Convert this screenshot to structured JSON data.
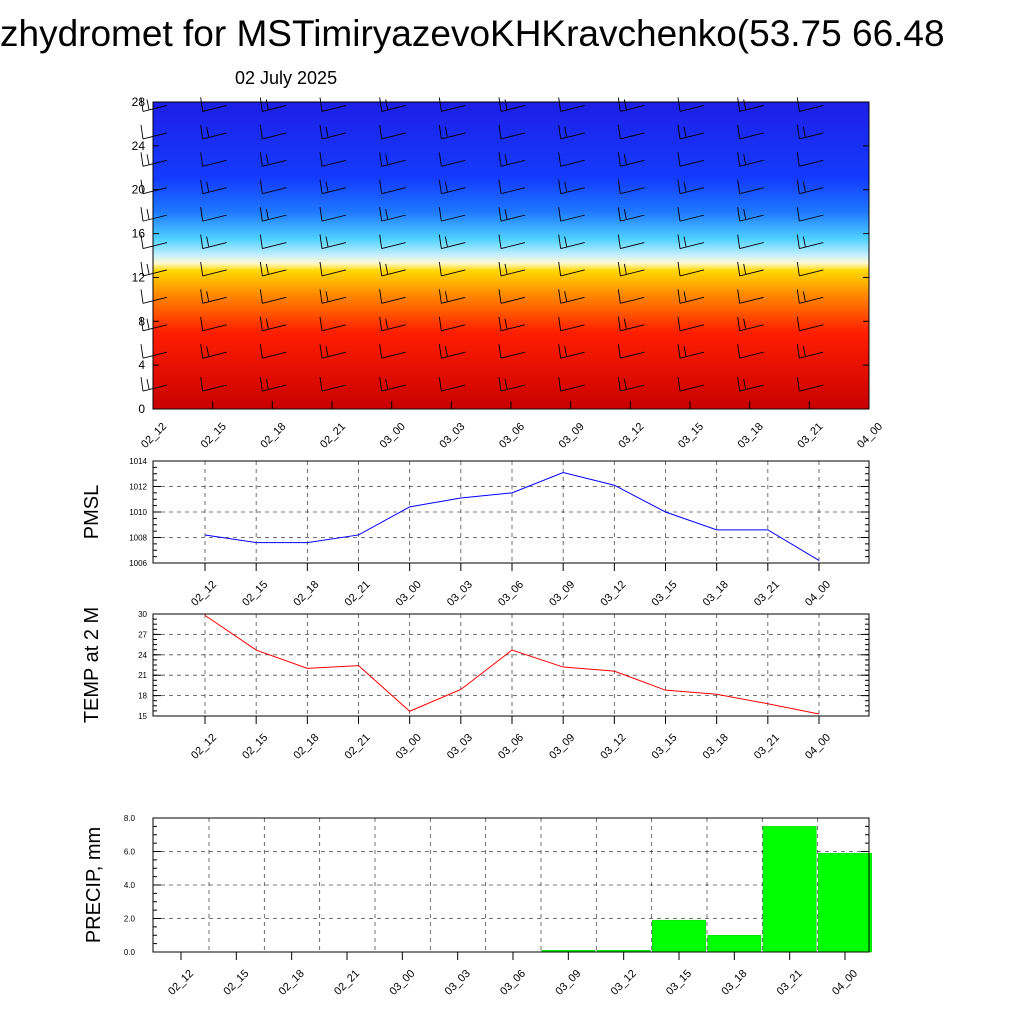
{
  "header": {
    "title": "zhydromet for MSTimiryazevoKHKravchenko(53.75 66.48",
    "date": "02 July 2025"
  },
  "colors": {
    "pmsl_line": "#0000ff",
    "temp_line": "#ff0000",
    "precip_bar": "#00ff00",
    "section_cold": "#1e1ee6",
    "section_warm": "#e60000"
  },
  "chart_data": [
    {
      "id": "section",
      "type": "heatmap",
      "title": "",
      "xlabel": "",
      "ylabel": "",
      "x": [
        "02_12",
        "02_15",
        "02_18",
        "02_21",
        "03_00",
        "03_03",
        "03_06",
        "03_09",
        "03_12",
        "03_15",
        "03_18",
        "03_21",
        "04_00"
      ],
      "ylim": [
        0,
        28
      ],
      "yticks": [
        "0",
        "4",
        "8",
        "12",
        "16",
        "20",
        "24",
        "28"
      ],
      "colormap": [
        {
          "level": 0,
          "color": "#c80000"
        },
        {
          "level": 7,
          "color": "#ff1e00"
        },
        {
          "level": 10.5,
          "color": "#ff8c00"
        },
        {
          "level": 12.6,
          "color": "#ffd700"
        },
        {
          "level": 13.3,
          "color": "#fffacd"
        },
        {
          "level": 14,
          "color": "#c8f0ff"
        },
        {
          "level": 15.5,
          "color": "#50d2ff"
        },
        {
          "level": 18,
          "color": "#1e78ff"
        },
        {
          "level": 21,
          "color": "#143cff"
        },
        {
          "level": 28,
          "color": "#1e1ee6"
        }
      ],
      "wind_barbs": "present",
      "grid": false
    },
    {
      "id": "pmsl",
      "type": "line",
      "ylabel": "PMSL",
      "x": [
        "02_12",
        "02_15",
        "02_18",
        "02_21",
        "03_00",
        "03_03",
        "03_06",
        "03_09",
        "03_12",
        "03_15",
        "03_18",
        "03_21",
        "04_00"
      ],
      "series": [
        {
          "values": [
            1008.2,
            1007.6,
            1007.6,
            1008.2,
            1010.4,
            1011.1,
            1011.5,
            1013.1,
            1012.1,
            1010.0,
            1008.6,
            1008.6,
            1006.2
          ]
        }
      ],
      "ylim": [
        1006,
        1014
      ],
      "yticks": [
        "1006",
        "1008",
        "1010",
        "1012",
        "1014"
      ],
      "grid": true
    },
    {
      "id": "temp",
      "type": "line",
      "ylabel": "TEMP at 2 M",
      "x": [
        "02_12",
        "02_15",
        "02_18",
        "02_21",
        "03_00",
        "03_03",
        "03_06",
        "03_09",
        "03_12",
        "03_15",
        "03_18",
        "03_21",
        "04_00"
      ],
      "series": [
        {
          "values": [
            29.8,
            24.7,
            22.0,
            22.4,
            15.7,
            18.9,
            24.7,
            22.2,
            21.6,
            18.8,
            18.2,
            16.8,
            15.3
          ]
        }
      ],
      "ylim": [
        15,
        30
      ],
      "yticks": [
        "15",
        "18",
        "21",
        "24",
        "27",
        "30"
      ],
      "grid": true
    },
    {
      "id": "precip",
      "type": "bar",
      "ylabel": "PRECIP, mm",
      "categories": [
        "02_12",
        "02_15",
        "02_18",
        "02_21",
        "03_00",
        "03_03",
        "03_06",
        "03_09",
        "03_12",
        "03_15",
        "03_18",
        "03_21",
        "04_00"
      ],
      "values": [
        0,
        0,
        0,
        0,
        0,
        0,
        0,
        0.1,
        0.1,
        1.9,
        1.0,
        7.5,
        5.9
      ],
      "ylim": [
        0,
        8
      ],
      "yticks": [
        "0.0",
        "2.0",
        "4.0",
        "6.0",
        "8.0"
      ],
      "grid": true
    }
  ]
}
